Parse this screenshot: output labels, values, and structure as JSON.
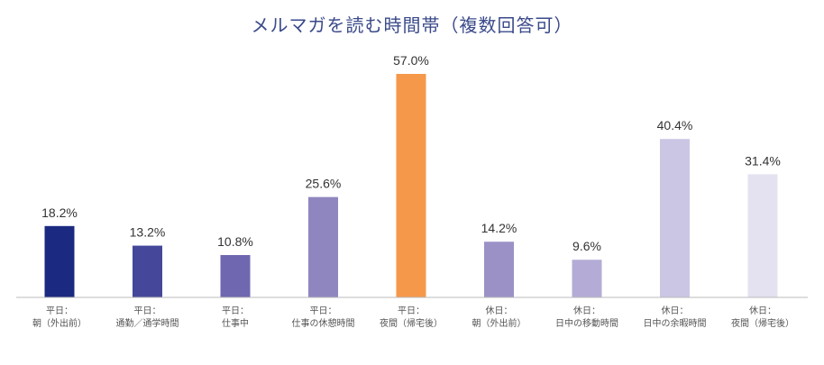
{
  "chart_data": {
    "type": "bar",
    "title": "メルマガを読む時間帯（複数回答可）",
    "xlabel": "",
    "ylabel": "",
    "ylim": [
      0,
      60
    ],
    "grid": false,
    "categories": [
      [
        "平日：",
        "朝（外出前）"
      ],
      [
        "平日：",
        "通勤／通学時間"
      ],
      [
        "平日：",
        "仕事中"
      ],
      [
        "平日：",
        "仕事の休憩時間"
      ],
      [
        "平日：",
        "夜間（帰宅後）"
      ],
      [
        "休日：",
        "朝（外出前）"
      ],
      [
        "休日：",
        "日中の移動時間"
      ],
      [
        "休日：",
        "日中の余暇時間"
      ],
      [
        "休日：",
        "夜間（帰宅後）"
      ]
    ],
    "values": [
      18.2,
      13.2,
      10.8,
      25.6,
      57.0,
      14.2,
      9.6,
      40.4,
      31.4
    ],
    "value_labels": [
      "18.2%",
      "13.2%",
      "10.8%",
      "25.6%",
      "57.0%",
      "14.2%",
      "9.6%",
      "40.4%",
      "31.4%"
    ],
    "colors": [
      "#1b2a80",
      "#45489a",
      "#6f67b0",
      "#8f86c0",
      "#f5984a",
      "#9b91c6",
      "#b4acd6",
      "#cbc6e4",
      "#e4e1f1"
    ],
    "axis_color": "#bbbbbb"
  }
}
